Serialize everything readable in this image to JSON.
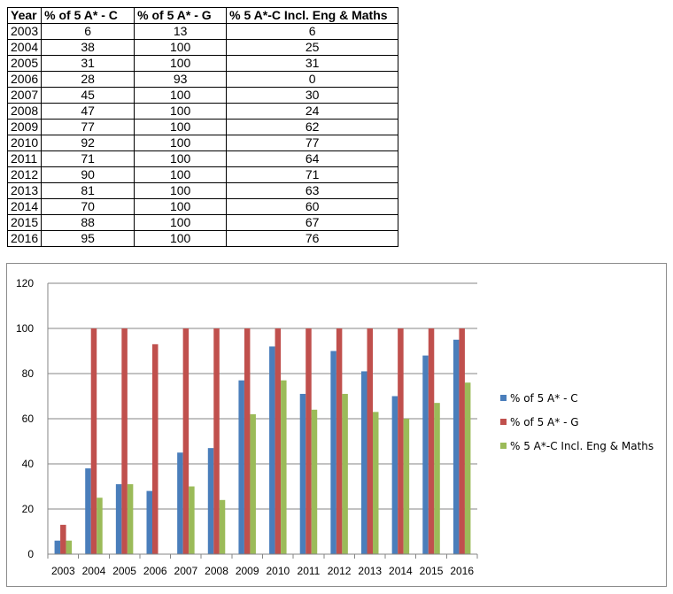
{
  "table": {
    "headers": [
      "Year",
      "% of 5 A* - C",
      "% of  5 A* - G",
      "% 5 A*-C Incl. Eng & Maths"
    ],
    "rows": [
      [
        "2003",
        "6",
        "13",
        "6"
      ],
      [
        "2004",
        "38",
        "100",
        "25"
      ],
      [
        "2005",
        "31",
        "100",
        "31"
      ],
      [
        "2006",
        "28",
        "93",
        "0"
      ],
      [
        "2007",
        "45",
        "100",
        "30"
      ],
      [
        "2008",
        "47",
        "100",
        "24"
      ],
      [
        "2009",
        "77",
        "100",
        "62"
      ],
      [
        "2010",
        "92",
        "100",
        "77"
      ],
      [
        "2011",
        "71",
        "100",
        "64"
      ],
      [
        "2012",
        "90",
        "100",
        "71"
      ],
      [
        "2013",
        "81",
        "100",
        "63"
      ],
      [
        "2014",
        "70",
        "100",
        "60"
      ],
      [
        "2015",
        "88",
        "100",
        "67"
      ],
      [
        "2016",
        "95",
        "100",
        "76"
      ]
    ]
  },
  "chart_data": {
    "type": "bar",
    "title": "",
    "xlabel": "",
    "ylabel": "",
    "categories": [
      "2003",
      "2004",
      "2005",
      "2006",
      "2007",
      "2008",
      "2009",
      "2010",
      "2011",
      "2012",
      "2013",
      "2014",
      "2015",
      "2016"
    ],
    "series": [
      {
        "name": "% of 5 A* - C",
        "color": "#4a7ebb",
        "values": [
          6,
          38,
          31,
          28,
          45,
          47,
          77,
          92,
          71,
          90,
          81,
          70,
          88,
          95
        ]
      },
      {
        "name": "% of  5 A* - G",
        "color": "#c0504d",
        "values": [
          13,
          100,
          100,
          93,
          100,
          100,
          100,
          100,
          100,
          100,
          100,
          100,
          100,
          100
        ]
      },
      {
        "name": "% 5 A*-C Incl. Eng & Maths",
        "color": "#9bbb59",
        "values": [
          6,
          25,
          31,
          0,
          30,
          24,
          62,
          77,
          64,
          71,
          63,
          60,
          67,
          76
        ]
      }
    ],
    "ylim": [
      0,
      120
    ],
    "yticks": [
      0,
      20,
      40,
      60,
      80,
      100,
      120
    ],
    "grid": true,
    "legend_position": "right"
  }
}
